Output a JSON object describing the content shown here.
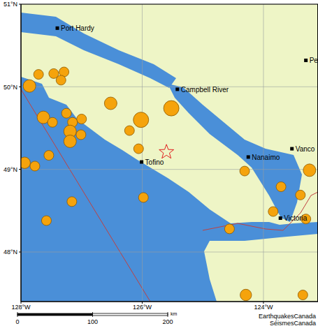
{
  "chart_data": {
    "type": "scatter",
    "xlim": [
      -128,
      -123.1
    ],
    "ylim": [
      47.4,
      51.0
    ],
    "xticks": [
      {
        "value": -128,
        "label": "128°W"
      },
      {
        "value": -126,
        "label": "126°W"
      },
      {
        "value": -124,
        "label": "124°W"
      }
    ],
    "yticks": [
      {
        "value": 48,
        "label": "48°N"
      },
      {
        "value": 49,
        "label": "49°N"
      },
      {
        "value": 50,
        "label": "50°N"
      },
      {
        "value": 51,
        "label": "51°N"
      }
    ],
    "grid": true,
    "earthquakes": {
      "color": "#f5a30c",
      "marker": "circle",
      "x": [
        -127.71,
        -127.86,
        -127.46,
        -127.29,
        -127.34,
        -127.63,
        -127.48,
        -127.25,
        -127.0,
        -127.15,
        -127.19,
        -127.01,
        -127.19,
        -126.52,
        -126.02,
        -125.52,
        -126.21,
        -126.06,
        -127.54,
        -127.94,
        -127.77,
        -127.16,
        -127.58,
        -125.98,
        -124.31,
        -123.71,
        -123.24,
        -123.39,
        -123.84,
        -123.3,
        -124.56,
        -124.29,
        -123.35
      ],
      "y": [
        50.15,
        50.01,
        50.16,
        50.18,
        50.08,
        49.63,
        49.57,
        49.68,
        49.61,
        49.57,
        49.46,
        49.42,
        49.34,
        49.8,
        49.6,
        49.74,
        49.47,
        49.25,
        49.17,
        49.08,
        49.04,
        48.61,
        48.38,
        48.66,
        48.98,
        48.79,
        48.99,
        48.69,
        48.49,
        48.4,
        48.28,
        47.48,
        47.48
      ],
      "magnitude": [
        3.0,
        3.5,
        3.0,
        3.0,
        3.0,
        3.5,
        3.0,
        3.0,
        3.0,
        3.0,
        3.5,
        3.0,
        3.5,
        3.5,
        4.0,
        4.0,
        3.0,
        3.0,
        3.0,
        3.3,
        3.0,
        3.0,
        3.0,
        3.0,
        3.0,
        3.0,
        3.5,
        3.0,
        3.0,
        3.0,
        3.0,
        3.3,
        3.0
      ]
    },
    "epicenter": {
      "color": "#e02020",
      "marker": "star",
      "x": [
        -125.6
      ],
      "y": [
        49.21
      ]
    },
    "cities": {
      "color": "#000000",
      "marker": "square",
      "labels": [
        "Port Hardy",
        "Campbell River",
        "Tofino",
        "Nanaimo",
        "Vanco",
        "Pe",
        "Victoria"
      ],
      "x": [
        -127.4,
        -125.42,
        -126.01,
        -124.25,
        -123.53,
        -123.3,
        -123.72
      ],
      "y": [
        50.71,
        49.97,
        49.09,
        49.15,
        49.25,
        50.32,
        48.41
      ]
    },
    "scale_bar": {
      "ticks": [
        0,
        100,
        200
      ],
      "unit": "km"
    },
    "credits": [
      "EarthquakesCanada",
      "SéismesCanada"
    ]
  }
}
